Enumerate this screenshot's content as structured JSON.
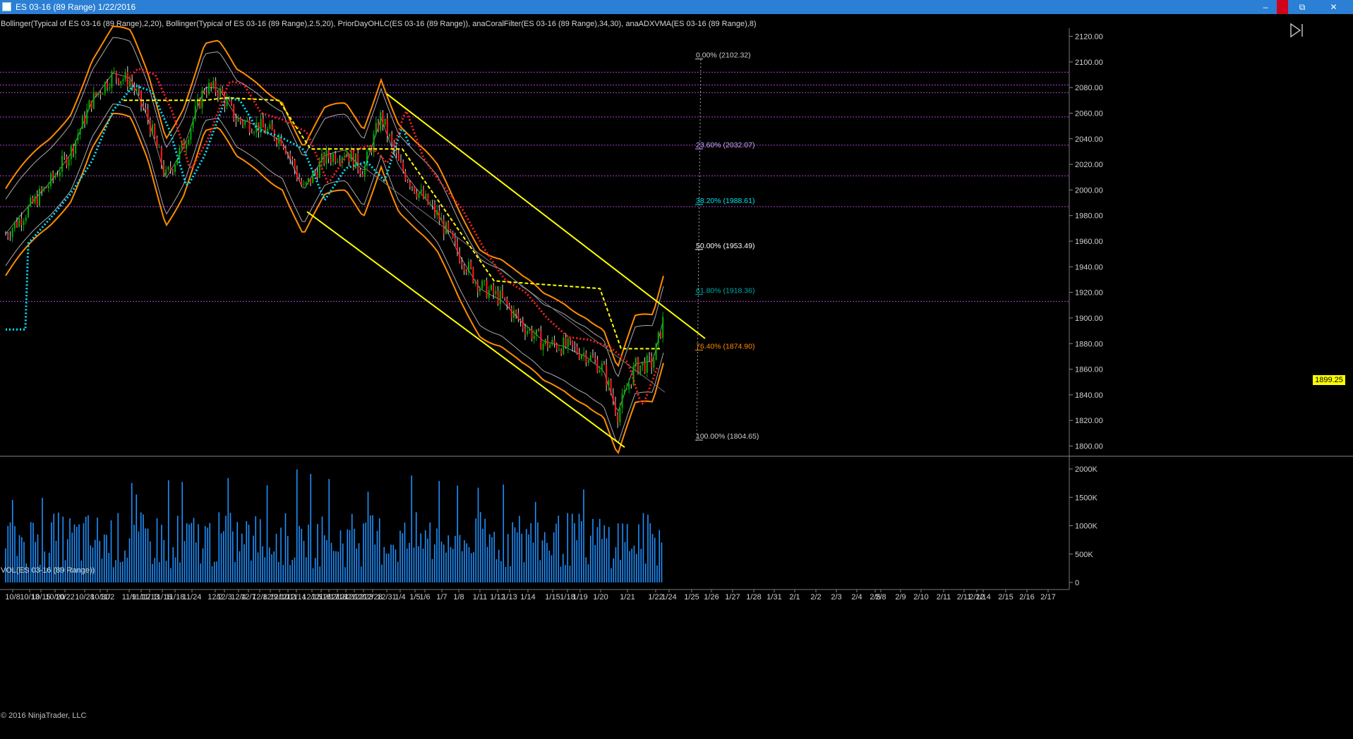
{
  "window": {
    "title": "ES 03-16 (89 Range)  1/22/2016",
    "buttons": {
      "minimize": "–",
      "restore": "⧉",
      "close": "✕"
    }
  },
  "indicators_label": "Bollinger(Typical of ES 03-16 (89 Range),2,20), Bollinger(Typical of ES 03-16 (89 Range),2.5,20), PriorDayOHLC(ES 03-16 (89 Range)), anaCoralFilter(ES 03-16 (89 Range),34,30), anaADXVMA(ES 03-16 (89 Range),8)",
  "volume_label": "VOL(ES 03-16 (89 Range))",
  "copyright": "© 2016 NinjaTrader, LLC",
  "current_price": "1899.25",
  "colors": {
    "up": "#00b000",
    "down": "#ff1a1a",
    "band": "#ff8c00",
    "channel": "#ffff00",
    "volume": "#1e90ff",
    "cyan": "#00e5ff"
  },
  "chart_data": {
    "type": "candlestick",
    "price_axis": {
      "min": 1800,
      "max": 2120,
      "ticks": [
        "2120.00",
        "2100.00",
        "2080.00",
        "2060.00",
        "2040.00",
        "2020.00",
        "2000.00",
        "1980.00",
        "1960.00",
        "1940.00",
        "1920.00",
        "1900.00",
        "1880.00",
        "1860.00",
        "1840.00",
        "1820.00",
        "1800.00"
      ]
    },
    "volume_axis": {
      "min": 0,
      "max": 2000000,
      "ticks": [
        "2000K",
        "1500K",
        "1000K",
        "500K",
        "0"
      ]
    },
    "date_ticks": [
      "10/8",
      "10/13",
      "10/15",
      "10/20",
      "10/22",
      "10/28",
      "10/30",
      "11/2",
      "11/9",
      "11/12",
      "11/13",
      "11/16",
      "11/18",
      "11/24",
      "12/2",
      "12/3",
      "12/4",
      "12/7",
      "12/8",
      "12/9",
      "12/10",
      "12/11",
      "12/14",
      "12/15",
      "12/16",
      "12/17",
      "12/18",
      "12/21",
      "12/22",
      "12/23",
      "12/28",
      "12/31",
      "1/4",
      "1/5",
      "1/6",
      "1/7",
      "1/8",
      "1/11",
      "1/12",
      "1/13",
      "1/14",
      "1/15",
      "1/18",
      "1/19",
      "1/20",
      "1/21",
      "1/22",
      "1/24",
      "1/25",
      "1/26",
      "1/27",
      "1/28",
      "1/31",
      "2/1",
      "2/2",
      "2/3",
      "2/4",
      "2/5",
      "2/8",
      "2/9",
      "2/10",
      "2/11",
      "2/11",
      "2/12",
      "2/14",
      "2/15",
      "2/16",
      "2/17"
    ],
    "fibonacci": [
      {
        "label": "0.00% (2102.32)",
        "price": 2102.32,
        "color": "#cccccc"
      },
      {
        "label": "23.60% (2032.07)",
        "price": 2032.07,
        "color": "#c8a8ff"
      },
      {
        "label": "38.20% (1988.61)",
        "price": 1988.61,
        "color": "#00e5ee"
      },
      {
        "label": "50.00% (1953.49)",
        "price": 1953.49,
        "color": "#ffffff"
      },
      {
        "label": "61.80% (1918.36)",
        "price": 1918.36,
        "color": "#00a8a8"
      },
      {
        "label": "76.40% (1874.90)",
        "price": 1874.9,
        "color": "#ff8c00"
      },
      {
        "label": "100.00% (1804.65)",
        "price": 1804.65,
        "color": "#cccccc"
      }
    ],
    "prior_day_levels": [
      2092,
      2082,
      2076,
      2057,
      2035,
      2011,
      1987,
      1913
    ]
  }
}
